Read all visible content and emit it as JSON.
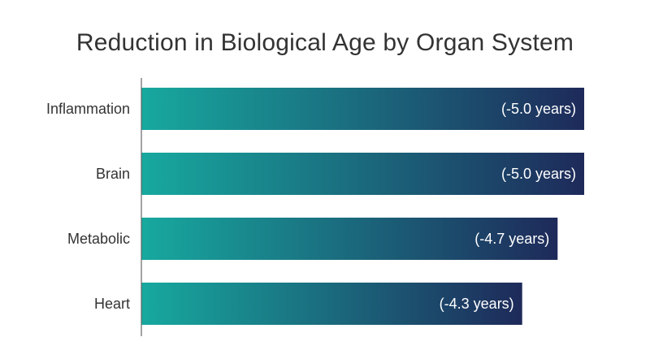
{
  "chart_data": {
    "type": "bar",
    "orientation": "horizontal",
    "title": "Reduction in Biological Age by Organ System",
    "categories": [
      "Inflammation",
      "Brain",
      "Metabolic",
      "Heart"
    ],
    "values": [
      5.0,
      5.0,
      4.7,
      4.3
    ],
    "data_labels": [
      "(-5.0 years)",
      "(-5.0 years)",
      "(-4.7 years)",
      "(-4.3 years)"
    ],
    "xlim": [
      0,
      5.0
    ],
    "xlabel": "",
    "ylabel": "",
    "grid": false,
    "legend": "none",
    "colors": {
      "bar_gradient_start": "#17A99F",
      "bar_gradient_end": "#1E2A5A",
      "text": "#333333",
      "axis": "#666666"
    }
  }
}
